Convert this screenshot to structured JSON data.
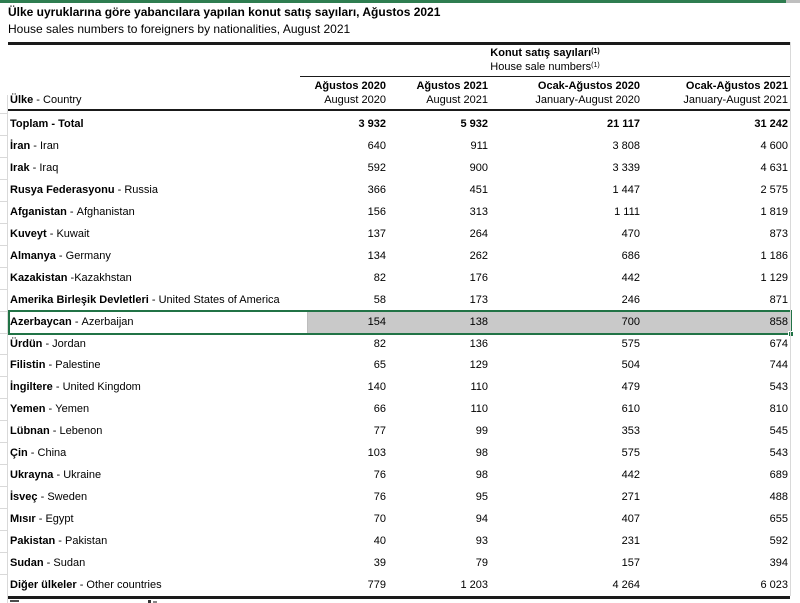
{
  "page": {
    "title_tr": "Ülke uyruklarına göre yabancılara yapılan konut satış sayıları, Ağustos 2021",
    "title_en": "House sales numbers to foreigners by nationalities, August 2021"
  },
  "table": {
    "group_header": {
      "tr": "Konut satış sayıları",
      "en": "House sale numbers",
      "footnote_marker": "(1)"
    },
    "country_header": {
      "tr": "Ülke",
      "sep": " - ",
      "en": "Country"
    },
    "columns": [
      {
        "tr": "Ağustos 2020",
        "en": "August 2020"
      },
      {
        "tr": "Ağustos 2021",
        "en": "August 2021"
      },
      {
        "tr": "Ocak-Ağustos 2020",
        "en": "January-August 2020"
      },
      {
        "tr": "Ocak-Ağustos 2021",
        "en": "January-August 2021"
      }
    ],
    "rows": [
      {
        "tr": "Toplam",
        "sep": " - ",
        "en": "Total",
        "values": [
          "3 932",
          "5 932",
          "21 117",
          "31 242"
        ],
        "bold": true
      },
      {
        "tr": "İran",
        "sep": " - ",
        "en": "Iran",
        "values": [
          "640",
          "911",
          "3 808",
          "4 600"
        ]
      },
      {
        "tr": "Irak",
        "sep": " - ",
        "en": "Iraq",
        "values": [
          "592",
          "900",
          "3 339",
          "4 631"
        ]
      },
      {
        "tr": "Rusya Federasyonu",
        "sep": " - ",
        "en": "Russia",
        "values": [
          "366",
          "451",
          "1 447",
          "2 575"
        ]
      },
      {
        "tr": "Afganistan",
        "sep": " - ",
        "en": "Afghanistan",
        "values": [
          "156",
          "313",
          "1 111",
          "1 819"
        ]
      },
      {
        "tr": "Kuveyt",
        "sep": " - ",
        "en": "Kuwait",
        "values": [
          "137",
          "264",
          "470",
          "873"
        ]
      },
      {
        "tr": "Almanya",
        "sep": " - ",
        "en": "Germany",
        "values": [
          "134",
          "262",
          "686",
          "1 186"
        ]
      },
      {
        "tr": "Kazakistan",
        "sep": " -",
        "en": "Kazakhstan",
        "values": [
          "82",
          "176",
          "442",
          "1 129"
        ]
      },
      {
        "tr": "Amerika Birleşik Devletleri",
        "sep": " - ",
        "en": "United States of America",
        "values": [
          "58",
          "173",
          "246",
          "871"
        ]
      },
      {
        "tr": "Azerbaycan",
        "sep": " - ",
        "en": "Azerbaijan",
        "values": [
          "154",
          "138",
          "700",
          "858"
        ],
        "highlighted": true
      },
      {
        "tr": "Ürdün",
        "sep": " - ",
        "en": "Jordan",
        "values": [
          "82",
          "136",
          "575",
          "674"
        ]
      },
      {
        "tr": "Filistin",
        "sep": " - ",
        "en": "Palestine",
        "values": [
          "65",
          "129",
          "504",
          "744"
        ]
      },
      {
        "tr": "İngiltere",
        "sep": " - ",
        "en": "United Kingdom",
        "values": [
          "140",
          "110",
          "479",
          "543"
        ]
      },
      {
        "tr": "Yemen",
        "sep": " - ",
        "en": "Yemen",
        "values": [
          "66",
          "110",
          "610",
          "810"
        ]
      },
      {
        "tr": "Lübnan",
        "sep": " - ",
        "en": "Lebenon",
        "values": [
          "77",
          "99",
          "353",
          "545"
        ]
      },
      {
        "tr": "Çin",
        "sep": " - ",
        "en": "China",
        "values": [
          "103",
          "98",
          "575",
          "543"
        ]
      },
      {
        "tr": "Ukrayna",
        "sep": " - ",
        "en": "Ukraine",
        "values": [
          "76",
          "98",
          "442",
          "689"
        ]
      },
      {
        "tr": "İsveç",
        "sep": " - ",
        "en": "Sweden",
        "values": [
          "76",
          "95",
          "271",
          "488"
        ]
      },
      {
        "tr": "Mısır",
        "sep": " - ",
        "en": "Egypt",
        "values": [
          "70",
          "94",
          "407",
          "655"
        ]
      },
      {
        "tr": "Pakistan",
        "sep": " - ",
        "en": "Pakistan",
        "values": [
          "40",
          "93",
          "231",
          "592"
        ]
      },
      {
        "tr": "Sudan",
        "sep": " - ",
        "en": "Sudan",
        "values": [
          "39",
          "79",
          "157",
          "394"
        ]
      },
      {
        "tr": "Diğer ülkeler",
        "sep": " - ",
        "en": "Other countries",
        "values": [
          "779",
          "1 203",
          "4 264",
          "6 023"
        ]
      }
    ]
  },
  "colors": {
    "topbar_green": "#2e7d50",
    "topbar_gray": "#bfbfbf",
    "selection_green": "#217346",
    "selection_fill": "#c9c9c9",
    "gridline": "#d9d9d9"
  }
}
